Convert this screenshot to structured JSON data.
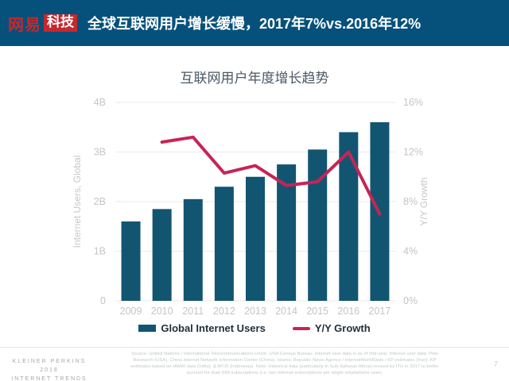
{
  "header": {
    "logo": {
      "brand": "网易",
      "suffix": "科技"
    },
    "title": "全球互联网用户增长缓慢，2017年7%vs.2016年12%"
  },
  "chart_data": {
    "type": "bar+line",
    "title": "互联网用户年度增长趋势",
    "categories": [
      "2009",
      "2010",
      "2011",
      "2012",
      "2013",
      "2014",
      "2015",
      "2016",
      "2017"
    ],
    "series": [
      {
        "name": "Global Internet Users",
        "type": "bar",
        "axis": "left",
        "unit": "B",
        "color": "#125571",
        "values": [
          1.6,
          1.85,
          2.05,
          2.3,
          2.5,
          2.75,
          3.05,
          3.4,
          3.6
        ]
      },
      {
        "name": "Y/Y Growth",
        "type": "line",
        "axis": "right",
        "unit": "%",
        "color": "#c72456",
        "values": [
          null,
          12.8,
          13.2,
          10.3,
          10.9,
          9.3,
          9.6,
          12.0,
          7.0
        ]
      }
    ],
    "left_axis": {
      "label": "Internet Users, Global",
      "min": 0,
      "max": 4,
      "ticks": [
        "4B",
        "3B",
        "2B",
        "1B",
        "0"
      ]
    },
    "right_axis": {
      "label": "Y/Y Growth",
      "min": 0,
      "max": 16,
      "ticks": [
        "16%",
        "12%",
        "8%",
        "4%",
        "0%"
      ]
    },
    "grid": true,
    "legend_position": "bottom"
  },
  "footer": {
    "brand_lines": [
      "KLEINER PERKINS",
      "2018",
      "INTERNET TRENDS"
    ],
    "source": "Source: United Nations / International Telecommunications Union, USA Census Bureau. Internet user data is as of mid-year. Internet user data: Pew Research (USA), China Internet Network Information Center (China), Islamic Republic News Agency / InternetWorldStats / KP estimates (Iran), KP estimates based on IAMAI data (India), & APJII (Indonesia). Note: Historical data (particularly in Sub-Saharan Africa) revised by ITU in 2017 to better account for dual-SIM subscriptions (i.e. two Internet subscriptions per single smartphone user).",
    "page_number": "7"
  },
  "colors": {
    "header_background": "#06517c",
    "brand_red": "#c6282e",
    "bar_color": "#125571",
    "line_color": "#c72456",
    "grid_color": "#e8eaeb",
    "tick_label": "#c1c5c8"
  }
}
